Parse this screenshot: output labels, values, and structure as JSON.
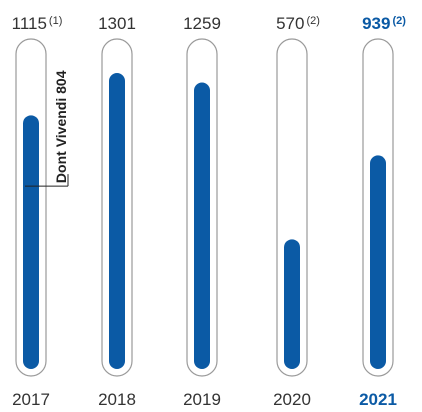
{
  "chart_data": {
    "type": "bar",
    "title": "",
    "xlabel": "",
    "ylabel": "",
    "ylim": [
      0,
      1450
    ],
    "categories": [
      "2017",
      "2018",
      "2019",
      "2020",
      "2021"
    ],
    "values": [
      1115,
      1301,
      1259,
      570,
      939
    ],
    "value_labels": [
      "1115",
      "1301",
      "1259",
      "570",
      "939"
    ],
    "notes": [
      "(1)",
      "",
      "",
      "(2)",
      "(2)"
    ],
    "highlight_index": 4,
    "annotation": {
      "category": "2017",
      "text": "Dont Vivendi 804",
      "value": 804
    },
    "colors": {
      "bar": "#0b5aa5",
      "track": "#9a9a9a",
      "highlight_text": "#0b5aa5",
      "text": "#333333"
    },
    "grid": false,
    "legend": "none"
  }
}
